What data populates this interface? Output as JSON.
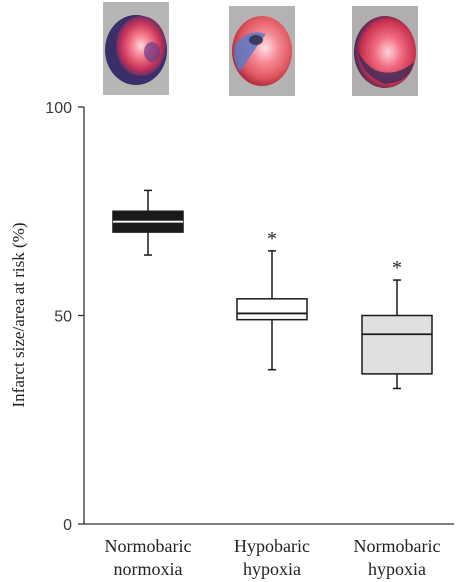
{
  "chart_data": {
    "type": "boxplot",
    "ylabel": "Infarct size/area at risk (%)",
    "ylim": [
      0,
      100
    ],
    "yticks": [
      {
        "value": 0,
        "label": "0"
      },
      {
        "value": 50,
        "label": "50"
      },
      {
        "value": 100,
        "label": "100"
      }
    ],
    "grid": false,
    "groups": [
      {
        "label_lines": [
          "Normobaric",
          "normoxia"
        ],
        "whisker_low": 64.5,
        "q1": 70,
        "median": 72.5,
        "q3": 75,
        "whisker_high": 80,
        "box_fill": "#1a1a1a",
        "median_color": "#ffffff",
        "significance": "",
        "thumbnail": "heart-slice-normobaric-normoxia"
      },
      {
        "label_lines": [
          "Hypobaric",
          "hypoxia"
        ],
        "whisker_low": 37,
        "q1": 49,
        "median": 50.5,
        "q3": 54,
        "whisker_high": 65.5,
        "box_fill": "#ffffff",
        "median_color": "#1a1a1a",
        "significance": "*",
        "thumbnail": "heart-slice-hypobaric-hypoxia"
      },
      {
        "label_lines": [
          "Normobaric",
          "hypoxia"
        ],
        "whisker_low": 32.5,
        "q1": 36,
        "median": 45.5,
        "q3": 50,
        "whisker_high": 58.5,
        "box_fill": "#e0e0e0",
        "median_color": "#1a1a1a",
        "significance": "*",
        "thumbnail": "heart-slice-normobaric-hypoxia"
      }
    ]
  }
}
